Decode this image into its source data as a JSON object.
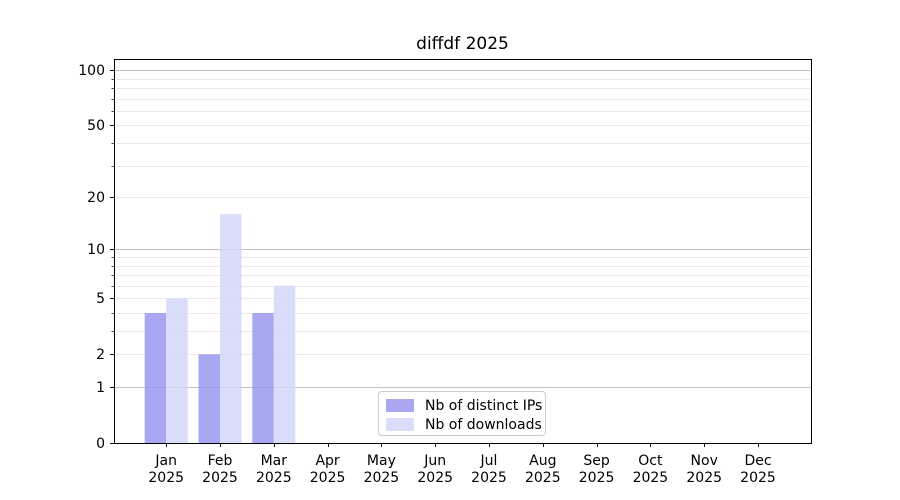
{
  "chart_data": {
    "type": "bar",
    "title": "diffdf 2025",
    "categories": [
      "Jan",
      "Feb",
      "Mar",
      "Apr",
      "May",
      "Jun",
      "Jul",
      "Aug",
      "Sep",
      "Oct",
      "Nov",
      "Dec"
    ],
    "x_year": "2025",
    "series": [
      {
        "name": "Nb of distinct IPs",
        "color": "#9595ef",
        "values": [
          4,
          2,
          4,
          0,
          0,
          0,
          0,
          0,
          0,
          0,
          0,
          0
        ]
      },
      {
        "name": "Nb of downloads",
        "color": "#d2d5f9",
        "values": [
          5,
          16,
          6,
          0,
          0,
          0,
          0,
          0,
          0,
          0,
          0,
          0
        ]
      }
    ],
    "y_scale": "log1p",
    "ylim": [
      0,
      115
    ],
    "y_tick_values": [
      0,
      1,
      2,
      5,
      10,
      20,
      50,
      100
    ],
    "y_major_gridlines": [
      1,
      10,
      100
    ],
    "y_minor_gridlines": [
      2,
      3,
      4,
      5,
      6,
      7,
      8,
      9,
      20,
      30,
      40,
      50,
      60,
      70,
      80,
      90
    ],
    "grid": true,
    "legend_position": "lower center"
  },
  "colors": {
    "background": "#ffffff",
    "axis": "#000000",
    "text": "#000000",
    "major_grid": "#c2c2c2",
    "minor_grid": "#ebebeb",
    "legend_border": "#cccccc"
  }
}
